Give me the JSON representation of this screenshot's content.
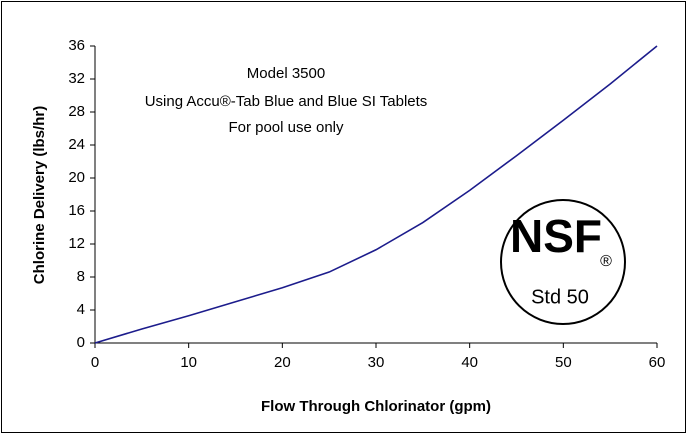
{
  "chart_data": {
    "type": "line",
    "x": [
      0,
      5,
      10,
      15,
      20,
      25,
      30,
      35,
      40,
      45,
      50,
      55,
      60
    ],
    "series": [
      {
        "name": "Model 3500",
        "color": "#1c1c8c",
        "values": [
          0,
          1.7,
          3.3,
          5.0,
          6.7,
          8.6,
          11.3,
          14.6,
          18.5,
          22.7,
          27.0,
          31.4,
          36
        ]
      }
    ],
    "xlabel": "Flow Through Chlorinator (gpm)",
    "ylabel": "Chlorine Delivery (lbs/hr)",
    "xlim": [
      0,
      60
    ],
    "xticks": [
      0,
      10,
      20,
      30,
      40,
      50,
      60
    ],
    "ylim": [
      0,
      36
    ],
    "yticks": [
      0,
      4,
      8,
      12,
      16,
      20,
      24,
      28,
      32,
      36
    ],
    "annotations": [
      "Model 3500",
      "Using Accu®-Tab Blue and Blue SI Tablets",
      "For pool use only"
    ],
    "logo": {
      "text": "NSF",
      "mark": "®",
      "caption": "Std 50"
    },
    "grid": false
  }
}
